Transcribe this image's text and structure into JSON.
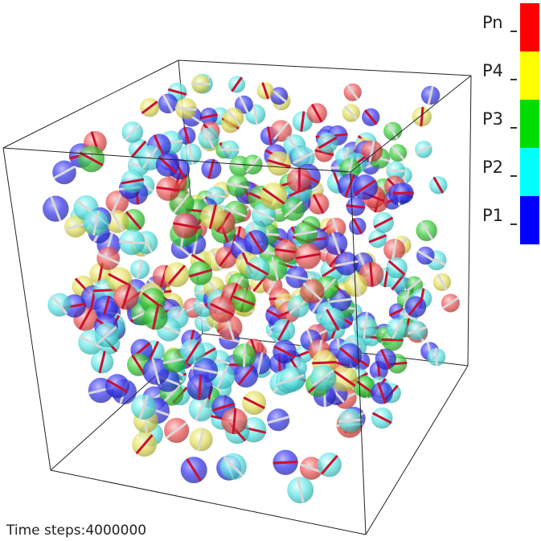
{
  "legend": {
    "entries": [
      {
        "label": "Pn",
        "color": "#ff0000"
      },
      {
        "label": "P4",
        "color": "#ffff00"
      },
      {
        "label": "P3",
        "color": "#00dd00"
      },
      {
        "label": "P2",
        "color": "#00ffff"
      },
      {
        "label": "P1",
        "color": "#0000ff"
      }
    ]
  },
  "status": {
    "time_steps_label": "Time steps:4000000"
  },
  "scene": {
    "description_icon": "particle-box-icon"
  }
}
